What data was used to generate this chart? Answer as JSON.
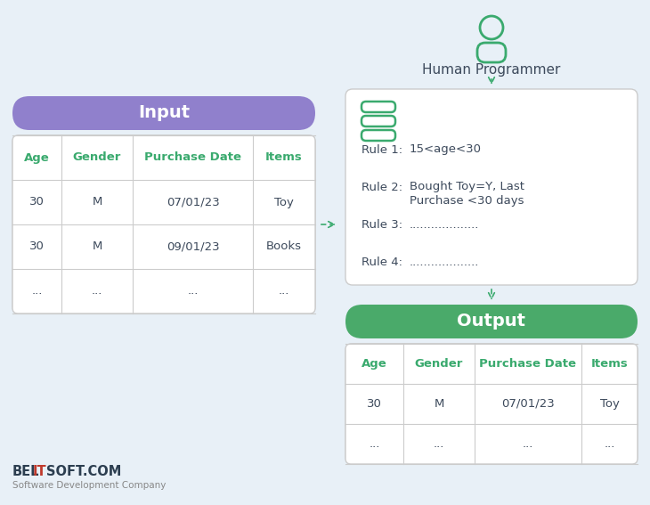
{
  "bg_color": "#e8f0f7",
  "title_text": "Human Programmer",
  "input_label": "Input",
  "output_label": "Output",
  "input_pill_color_l": "#9b8ed4",
  "input_pill_color_r": "#7b68c8",
  "output_pill_color_l": "#5dba74",
  "output_pill_color_r": "#3a8f52",
  "table_header_color": "#3aaa6e",
  "text_color_dark": "#3d4a5c",
  "arrow_color": "#3aaa6e",
  "person_color": "#3aaa6e",
  "rule_text_color": "#3d4a5c",
  "rules": [
    [
      "Rule 1:",
      "15<age<30",
      ""
    ],
    [
      "Rule 2:",
      "Bought Toy=Y, Last",
      "            Purchase <30 days"
    ],
    [
      "Rule 3:",
      "...................",
      ""
    ],
    [
      "Rule 4:",
      "...................",
      ""
    ]
  ],
  "input_table_headers": [
    "Age",
    "Gender",
    "Purchase Date",
    "Items"
  ],
  "input_table_rows": [
    [
      "30",
      "M",
      "07/01/23",
      "Toy"
    ],
    [
      "30",
      "M",
      "09/01/23",
      "Books"
    ],
    [
      "...",
      "...",
      "...",
      "..."
    ]
  ],
  "output_table_headers": [
    "Age",
    "Gender",
    "Purchase Date",
    "Items"
  ],
  "output_table_rows": [
    [
      "30",
      "M",
      "07/01/23",
      "Toy"
    ],
    [
      "...",
      "...",
      "...",
      "..."
    ]
  ],
  "subtitle_text": "Software Development Company",
  "logo_it_color": "#c0392b",
  "logo_main_color": "#2c3e50"
}
